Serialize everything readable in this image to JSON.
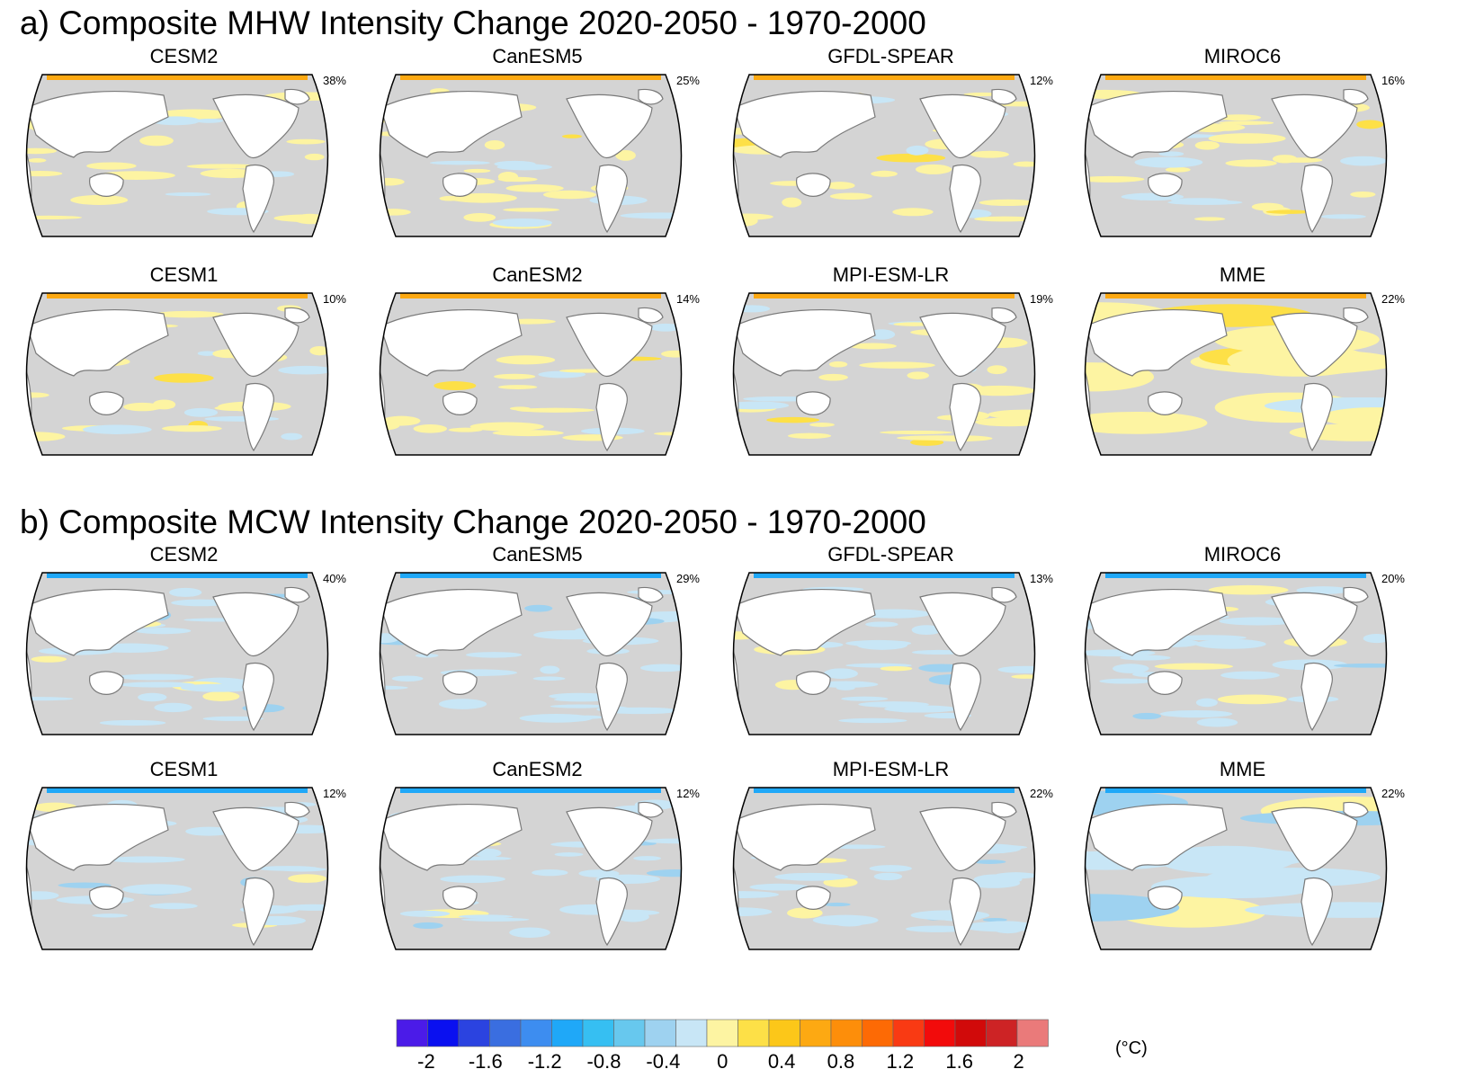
{
  "chart_data": {
    "type": "heatmap",
    "sections": [
      {
        "title": "a) Composite MHW Intensity Change 2020-2050 - 1970-2000",
        "panels": [
          {
            "model": "CESM2",
            "percent": "38%"
          },
          {
            "model": "CanESM5",
            "percent": "25%"
          },
          {
            "model": "GFDL-SPEAR",
            "percent": "12%"
          },
          {
            "model": "MIROC6",
            "percent": "16%"
          },
          {
            "model": "CESM1",
            "percent": "10%"
          },
          {
            "model": "CanESM2",
            "percent": "14%"
          },
          {
            "model": "MPI-ESM-LR",
            "percent": "19%"
          },
          {
            "model": "MME",
            "percent": "22%"
          }
        ]
      },
      {
        "title": "b) Composite MCW Intensity Change 2020-2050 - 1970-2000",
        "panels": [
          {
            "model": "CESM2",
            "percent": "40%"
          },
          {
            "model": "CanESM5",
            "percent": "29%"
          },
          {
            "model": "GFDL-SPEAR",
            "percent": "13%"
          },
          {
            "model": "MIROC6",
            "percent": "20%"
          },
          {
            "model": "CESM1",
            "percent": "12%"
          },
          {
            "model": "CanESM2",
            "percent": "12%"
          },
          {
            "model": "MPI-ESM-LR",
            "percent": "22%"
          },
          {
            "model": "MME",
            "percent": "22%"
          }
        ]
      }
    ],
    "colorbar": {
      "unit": "(°C)",
      "range": [
        -2.2,
        2.2
      ],
      "tick_labels": [
        "-2",
        "-1.6",
        "-1.2",
        "-0.8",
        "-0.4",
        "0",
        "0.4",
        "0.8",
        "1.2",
        "1.6",
        "2"
      ],
      "colors": [
        "#4b1be8",
        "#0a10f0",
        "#2b43e0",
        "#3a6ee0",
        "#3d8df0",
        "#1fa8f8",
        "#36bff2",
        "#67c8ee",
        "#9ed2f0",
        "#c8e6f6",
        "#fdf4a2",
        "#fde047",
        "#fcc719",
        "#fda912",
        "#fd8e0a",
        "#fd6a05",
        "#f93a13",
        "#f20b0b",
        "#d10a0a",
        "#cd2325",
        "#ea7a7a"
      ]
    },
    "map_colors": {
      "ocean": "#d4d4d4",
      "land": "#ffffff",
      "coast": "#7a7a7a",
      "border": "#000000"
    }
  }
}
